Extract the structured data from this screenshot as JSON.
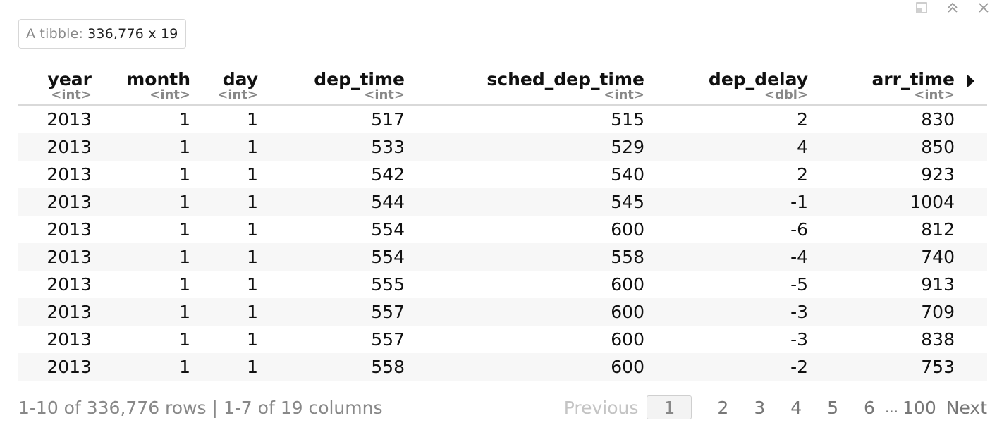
{
  "window_controls": {
    "popout_icon": "popout-icon",
    "collapse_icon": "chevron-up-double-icon",
    "close_icon": "close-icon"
  },
  "summary": {
    "prefix": "A tibble:",
    "dims": "336,776 x 19"
  },
  "columns": [
    {
      "name": "year",
      "type": "<int>"
    },
    {
      "name": "month",
      "type": "<int>"
    },
    {
      "name": "day",
      "type": "<int>"
    },
    {
      "name": "dep_time",
      "type": "<int>"
    },
    {
      "name": "sched_dep_time",
      "type": "<int>"
    },
    {
      "name": "dep_delay",
      "type": "<dbl>"
    },
    {
      "name": "arr_time",
      "type": "<int>"
    }
  ],
  "rows": [
    [
      "2013",
      "1",
      "1",
      "517",
      "515",
      "2",
      "830"
    ],
    [
      "2013",
      "1",
      "1",
      "533",
      "529",
      "4",
      "850"
    ],
    [
      "2013",
      "1",
      "1",
      "542",
      "540",
      "2",
      "923"
    ],
    [
      "2013",
      "1",
      "1",
      "544",
      "545",
      "-1",
      "1004"
    ],
    [
      "2013",
      "1",
      "1",
      "554",
      "600",
      "-6",
      "812"
    ],
    [
      "2013",
      "1",
      "1",
      "554",
      "558",
      "-4",
      "740"
    ],
    [
      "2013",
      "1",
      "1",
      "555",
      "600",
      "-5",
      "913"
    ],
    [
      "2013",
      "1",
      "1",
      "557",
      "600",
      "-3",
      "709"
    ],
    [
      "2013",
      "1",
      "1",
      "557",
      "600",
      "-3",
      "838"
    ],
    [
      "2013",
      "1",
      "1",
      "558",
      "600",
      "-2",
      "753"
    ]
  ],
  "footer": {
    "status": "1-10 of 336,776 rows | 1-7 of 19 columns"
  },
  "pagination": {
    "previous": "Previous",
    "current": "1",
    "pages": [
      "2",
      "3",
      "4",
      "5",
      "6"
    ],
    "ellipsis": "...",
    "last": "100",
    "next": "Next"
  }
}
